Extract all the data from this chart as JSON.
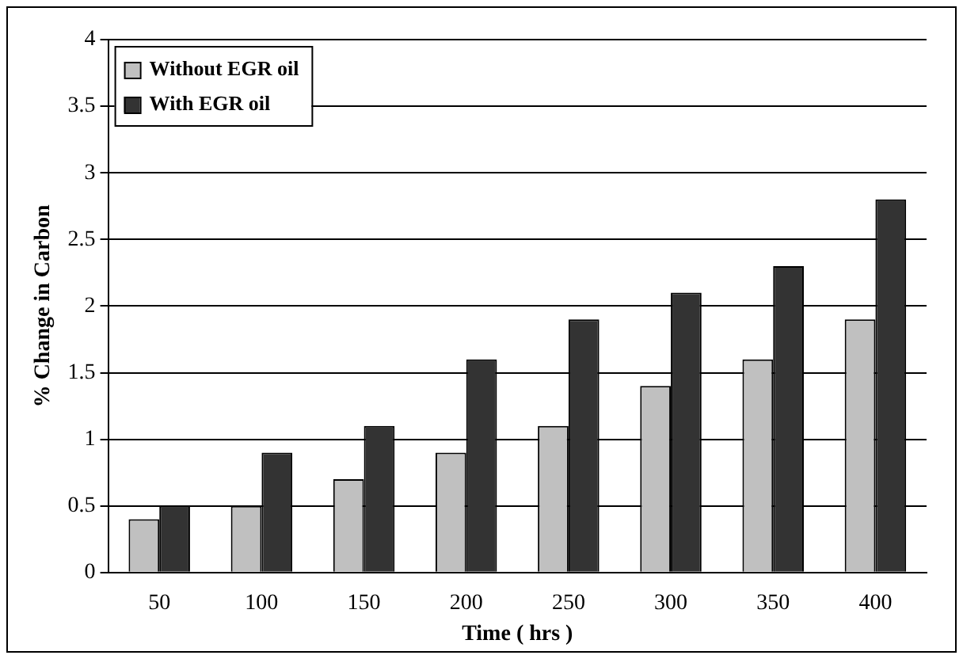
{
  "chart_data": {
    "type": "bar",
    "xlabel": "Time ( hrs )",
    "ylabel": "% Change in Carbon",
    "categories": [
      "50",
      "100",
      "150",
      "200",
      "250",
      "300",
      "350",
      "400"
    ],
    "series": [
      {
        "name": "Without EGR oil",
        "color": "#c0c0c0",
        "values": [
          0.4,
          0.5,
          0.7,
          0.9,
          1.1,
          1.4,
          1.6,
          1.9
        ]
      },
      {
        "name": "With EGR oil",
        "color": "#333333",
        "values": [
          0.5,
          0.9,
          1.1,
          1.6,
          1.9,
          2.1,
          2.3,
          2.8
        ]
      }
    ],
    "ylim": [
      0,
      4
    ],
    "yticks": [
      0,
      0.5,
      1,
      1.5,
      2,
      2.5,
      3,
      3.5,
      4
    ],
    "grid": "y",
    "legend": "top left"
  }
}
